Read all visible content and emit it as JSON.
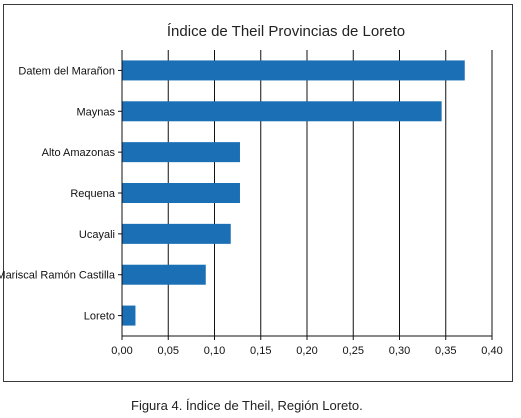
{
  "chart_data": {
    "type": "bar",
    "orientation": "horizontal",
    "title": "Índice de Theil Provincias de Loreto",
    "categories": [
      "Datem del Marañon",
      "Maynas",
      "Alto Amazonas",
      "Requena",
      "Ucayali",
      "Mariscal Ramón Castilla",
      "Loreto"
    ],
    "values": [
      0.37,
      0.345,
      0.127,
      0.127,
      0.117,
      0.09,
      0.014
    ],
    "xlim": [
      0,
      0.4
    ],
    "xticks": [
      "0,00",
      "0,05",
      "0,10",
      "0,15",
      "0,20",
      "0,25",
      "0,30",
      "0,35",
      "0,40"
    ],
    "xtick_values": [
      0,
      0.05,
      0.1,
      0.15,
      0.2,
      0.25,
      0.3,
      0.35,
      0.4
    ],
    "grid": "vertical",
    "bar_color": "#1a6fb5"
  },
  "caption": "Figura 4. Índice de Theil, Región Loreto."
}
